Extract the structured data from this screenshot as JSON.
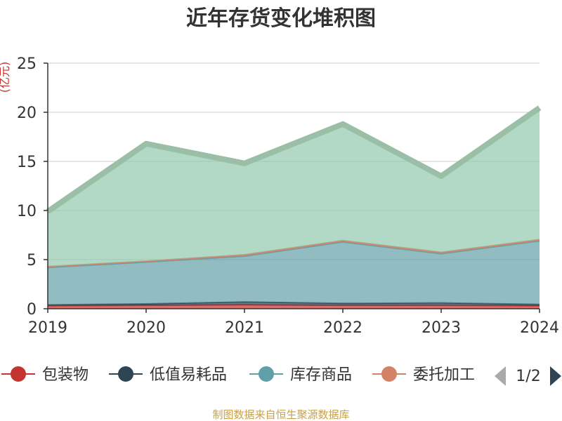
{
  "chart_data": {
    "type": "area",
    "stacked": true,
    "title": "近年存货变化堆积图",
    "ylabel": "(亿元)",
    "xlabel": "",
    "categories": [
      "2019",
      "2020",
      "2021",
      "2022",
      "2023",
      "2024"
    ],
    "yticks": [
      "0",
      "5",
      "10",
      "15",
      "20",
      "25"
    ],
    "ylim": [
      0,
      25
    ],
    "grid": true,
    "series": [
      {
        "name": "包装物",
        "color": "#c23531",
        "values": [
          0.3,
          0.35,
          0.4,
          0.35,
          0.35,
          0.3
        ]
      },
      {
        "name": "低值易耗品",
        "color": "#2f4554",
        "values": [
          0.1,
          0.15,
          0.3,
          0.2,
          0.25,
          0.15
        ]
      },
      {
        "name": "库存商品",
        "color": "#61a0a8",
        "values": [
          3.8,
          4.25,
          4.65,
          6.25,
          5.0,
          6.45
        ]
      },
      {
        "name": "委托加工",
        "color": "#d48265",
        "values": [
          0.1,
          0.1,
          0.15,
          0.15,
          0.15,
          0.15
        ]
      },
      {
        "name": "",
        "color": "#91c7ae",
        "values": [
          5.6,
          11.95,
          9.3,
          11.85,
          7.75,
          13.4
        ]
      }
    ],
    "legend_position": "bottom"
  },
  "legend": {
    "items": [
      "包装物",
      "低值易耗品",
      "库存商品",
      "委托加工"
    ],
    "page_label": "1/2"
  },
  "source_note": "制图数据来自恒生聚源数据库",
  "colors": {
    "axis": "#333333",
    "grid": "#cccccc",
    "ylabel": "#c23531",
    "source": "#c8a04a",
    "top_band": "#9bbfa6",
    "pager_active": "#2f4554",
    "pager_inactive": "#aaaaaa"
  }
}
